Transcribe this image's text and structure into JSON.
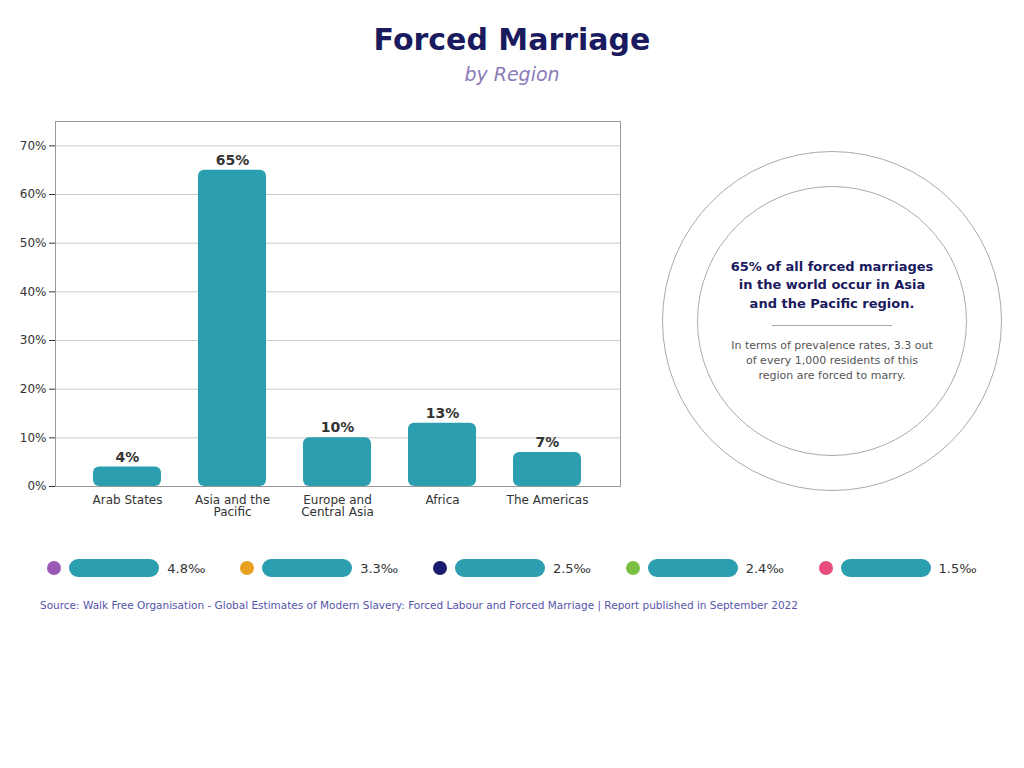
{
  "chart_data": {
    "type": "bar",
    "title": "Forced Marriage",
    "subtitle": "by Region",
    "categories": [
      "Arab States",
      "Asia and the Pacific",
      "Europe and Central Asia",
      "Africa",
      "The Americas"
    ],
    "values": [
      4,
      65,
      10,
      13,
      7
    ],
    "value_labels": [
      "4%",
      "65%",
      "10%",
      "13%",
      "7%"
    ],
    "data_labels": true,
    "color": "#2b9faf",
    "ylim": [
      0,
      75
    ],
    "yticks": [
      {
        "value": 0,
        "label": "0%"
      },
      {
        "value": 10,
        "label": "10%"
      },
      {
        "value": 20,
        "label": "20%"
      },
      {
        "value": 30,
        "label": "30%"
      },
      {
        "value": 40,
        "label": "40%"
      },
      {
        "value": 50,
        "label": "50%"
      },
      {
        "value": 60,
        "label": "60%"
      },
      {
        "value": 70,
        "label": "70%"
      }
    ],
    "grid": true,
    "annotations": [
      {
        "text": "65% of all forced marriages\nin the world occur in Asia\nand the Pacific region.",
        "color": "#1a1a5e"
      },
      {
        "text": "In terms of prevalence rates, 3.3 out\nof every 1,000 residents of this\nregion are forced to marry.",
        "color": "#555555"
      },
      {
        "text": "4.8‰",
        "color": "#9b59b6"
      },
      {
        "text": "3.3‰",
        "color": "#e8a020"
      },
      {
        "text": "2.5‰",
        "color": "#1a1a6e"
      },
      {
        "text": "2.4‰",
        "color": "#7bc043"
      },
      {
        "text": "1.5‰",
        "color": "#e74c7c"
      },
      {
        "text": "Source: Walk Free Organisation - Global Estimates of Modern Slavery: Forced Labour and Forced Marriage | Report published in September 2022",
        "color": "#5555aa"
      }
    ]
  }
}
